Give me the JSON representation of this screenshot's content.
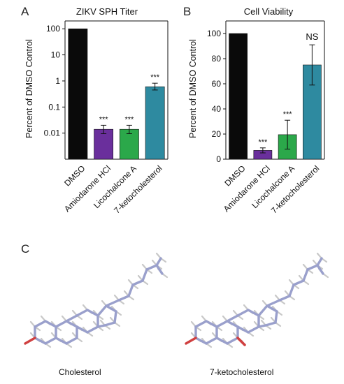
{
  "panels": [
    "A",
    "B",
    "C"
  ],
  "colors": {
    "DMSO": "#0a0a0a",
    "Amiodarone HCl": "#6a2f9c",
    "Licochalcone A": "#2ba84a",
    "7-ketocholesterol": "#2e8aa0",
    "mol_bond": "#9aa0cc",
    "mol_h": "#c8c8c8",
    "mol_o": "#d04040"
  },
  "chart_data": [
    {
      "type": "bar",
      "panel": "A",
      "title": "ZIKV SPH Titer",
      "ylabel": "Percent of DMSO Control",
      "xlabel": "",
      "yscale": "log",
      "ylim": [
        0.001,
        200
      ],
      "yticks": [
        100,
        10,
        1,
        0.1,
        0.01
      ],
      "ytick_labels": [
        "100",
        "10",
        "1",
        "0.1",
        "0.01"
      ],
      "categories": [
        "DMSO",
        "Amiodarone HCl",
        "Licochalcone A",
        "7-ketocholesterol"
      ],
      "values": [
        100,
        0.014,
        0.014,
        0.6
      ],
      "err_low": [
        0,
        0.0095,
        0.0095,
        0.45
      ],
      "err_high": [
        0,
        0.02,
        0.02,
        0.82
      ],
      "significance": [
        "",
        "***",
        "***",
        "***"
      ]
    },
    {
      "type": "bar",
      "panel": "B",
      "title": "Cell Viability",
      "ylabel": "Percent of DMSO Control",
      "xlabel": "",
      "yscale": "linear",
      "ylim": [
        0,
        110
      ],
      "yticks": [
        100,
        80,
        60,
        40,
        20,
        0
      ],
      "ytick_labels": [
        "100",
        "80",
        "60",
        "40",
        "20",
        "0"
      ],
      "categories": [
        "DMSO",
        "Amiodarone HCl",
        "Licochalcone A",
        "7-ketocholesterol"
      ],
      "values": [
        100,
        7,
        19.5,
        75
      ],
      "err_low": [
        100,
        5,
        8,
        59
      ],
      "err_high": [
        100,
        9,
        31,
        91
      ],
      "significance": [
        "",
        "***",
        "***",
        "NS"
      ]
    }
  ],
  "molecules": {
    "labels": [
      "Cholesterol",
      "7-ketocholesterol"
    ]
  }
}
